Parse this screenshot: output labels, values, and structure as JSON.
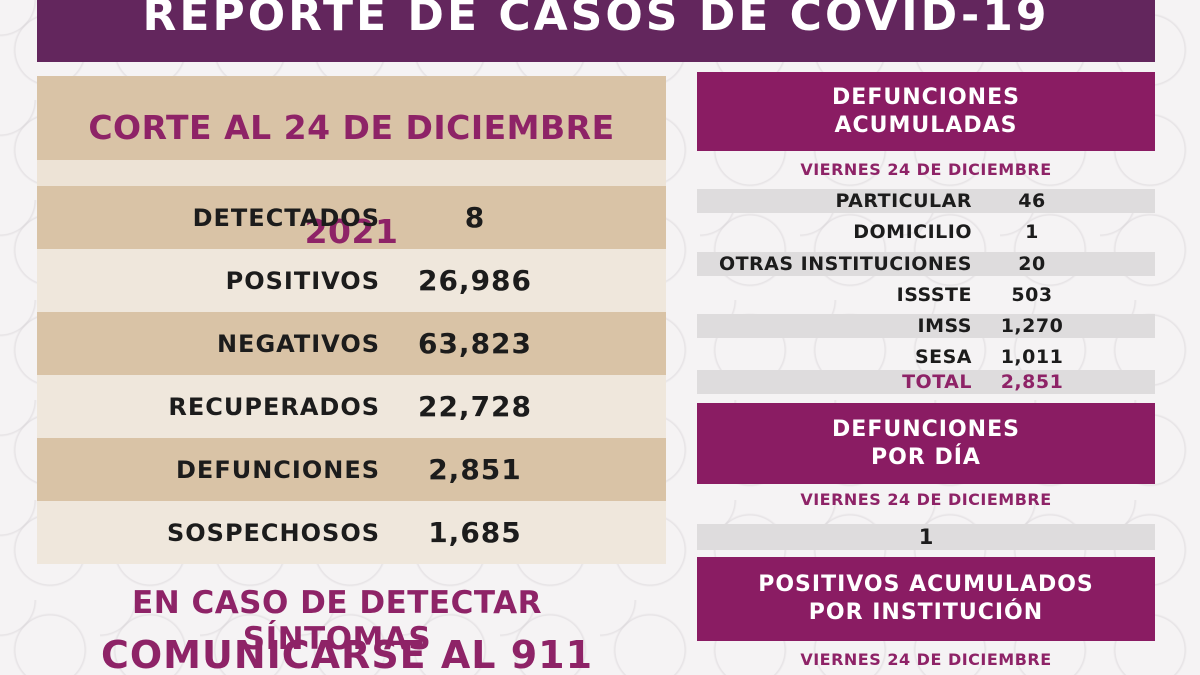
{
  "title": "REPORTE DE CASOS DE COVID-19",
  "cut_date": "CORTE AL 24 DE DICIEMBRE 2021",
  "stats": [
    {
      "label": "DETECTADOS",
      "value": "8"
    },
    {
      "label": "POSITIVOS",
      "value": "26,986"
    },
    {
      "label": "NEGATIVOS",
      "value": "63,823"
    },
    {
      "label": "RECUPERADOS",
      "value": "22,728"
    },
    {
      "label": "DEFUNCIONES",
      "value": "2,851"
    },
    {
      "label": "SOSPECHOSOS",
      "value": "1,685"
    }
  ],
  "cta": {
    "line1": "EN CASO DE DETECTAR SÍNTOMAS",
    "line2": "COMUNICARSE AL 911"
  },
  "deaths_cumulative": {
    "header_line1": "DEFUNCIONES",
    "header_line2": "ACUMULADAS",
    "date": "VIERNES 24 DE DICIEMBRE",
    "rows": [
      {
        "label": "PARTICULAR",
        "value": "46"
      },
      {
        "label": "DOMICILIO",
        "value": "1"
      },
      {
        "label": "OTRAS INSTITUCIONES",
        "value": "20"
      },
      {
        "label": "ISSSTE",
        "value": "503"
      },
      {
        "label": "IMSS",
        "value": "1,270"
      },
      {
        "label": "SESA",
        "value": "1,011"
      }
    ],
    "total_label": "TOTAL",
    "total_value": "2,851"
  },
  "deaths_per_day": {
    "header_line1": "DEFUNCIONES",
    "header_line2": "POR DÍA",
    "date": "VIERNES 24 DE DICIEMBRE",
    "value": "1"
  },
  "positives_by_institution": {
    "header_line1": "POSITIVOS ACUMULADOS",
    "header_line2": "POR INSTITUCIÓN",
    "date": "VIERNES 24 DE DICIEMBRE"
  },
  "colors": {
    "title_purple": "#63265d",
    "magenta": "#8a1c63",
    "accent_text": "#8e2367",
    "tan": "#d9c3a6",
    "light_tan": "#efe7dc",
    "gray_row": "#dedcdd"
  }
}
